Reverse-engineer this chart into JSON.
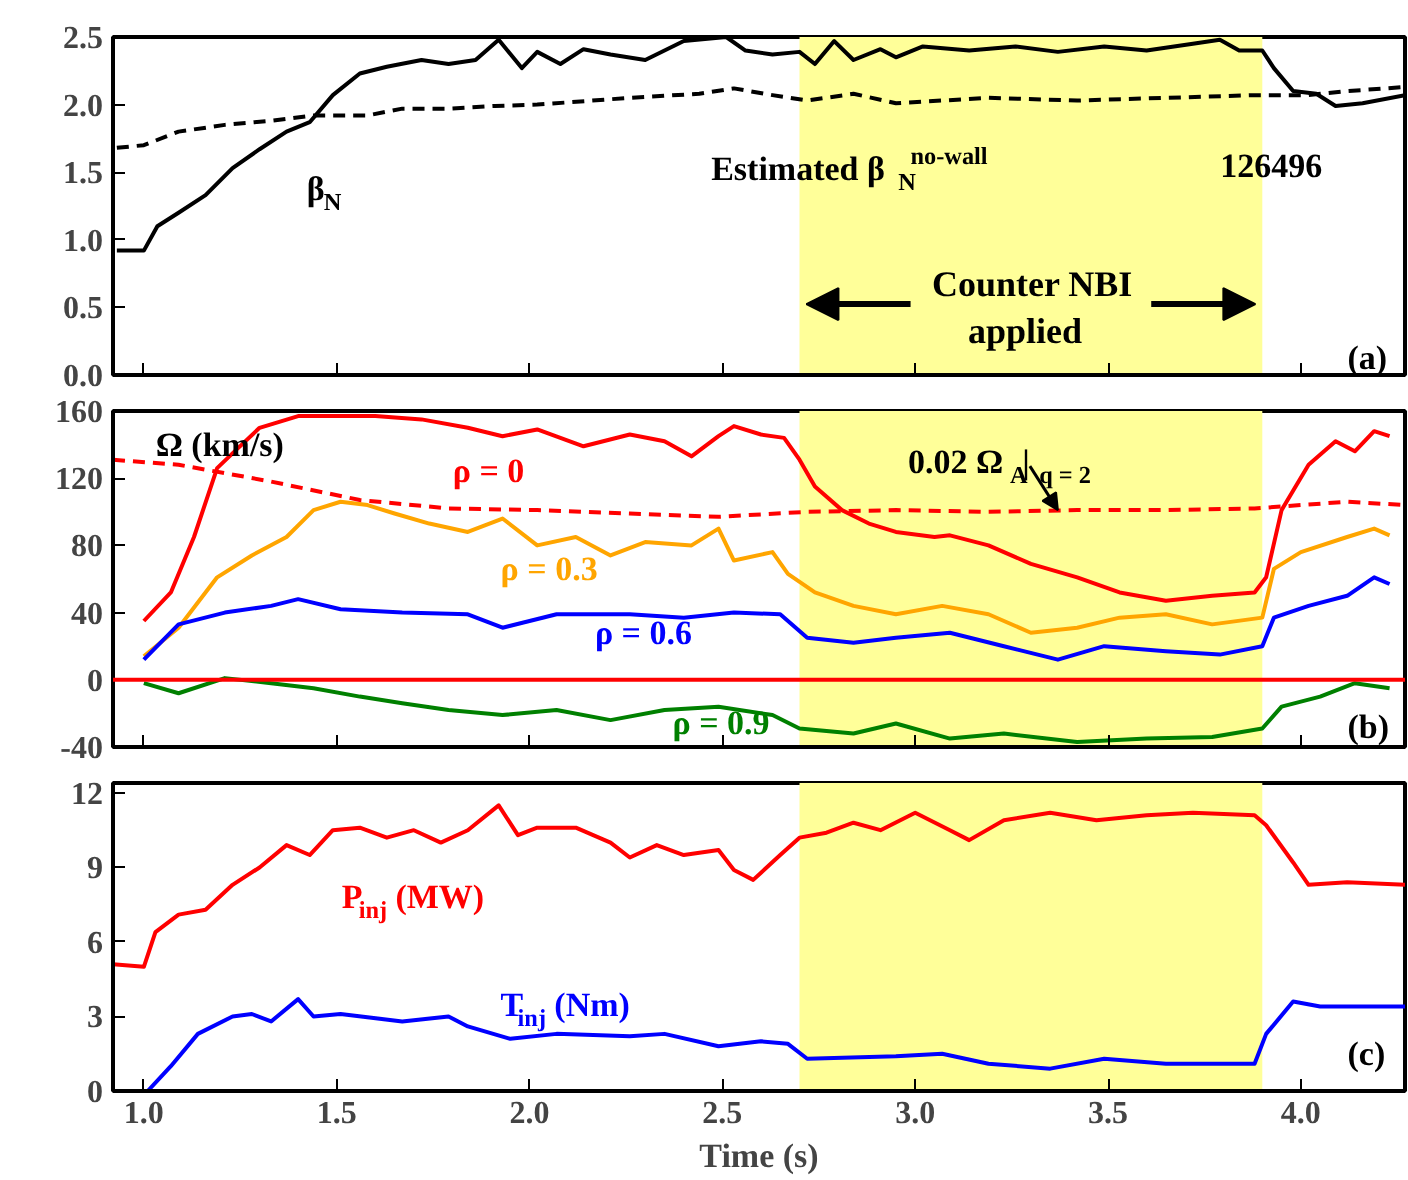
{
  "chart_data": [
    {
      "type": "line",
      "xlim": [
        0.92,
        4.27
      ],
      "ylim": [
        0,
        2.5
      ],
      "xticks": [
        {
          "value": 1,
          "label": null
        },
        {
          "value": 1.5,
          "label": null
        },
        {
          "value": 2,
          "label": null
        },
        {
          "value": 2.5,
          "label": null
        },
        {
          "value": 3,
          "label": null
        },
        {
          "value": 3.5,
          "label": null
        },
        {
          "value": 4,
          "label": null
        }
      ],
      "yticks": [
        {
          "value": 0,
          "label": "0.0"
        },
        {
          "value": 0.5,
          "label": "0.5"
        },
        {
          "value": 1,
          "label": "1.0"
        },
        {
          "value": 1.5,
          "label": "1.5"
        },
        {
          "value": 2,
          "label": "2.0"
        },
        {
          "value": 2.5,
          "label": "2.5"
        }
      ],
      "tick_labels": "y",
      "bands": [
        {
          "axis": "x",
          "from": 2.7,
          "to": 3.9,
          "label": "Counter NBI applied",
          "color": "#ffff99"
        }
      ],
      "annotations": [
        "126496",
        "(a)"
      ],
      "series": [
        {
          "name": "β$_{N}$",
          "color": "#000000",
          "line_style": "solid",
          "x": [
            0.93,
            1.0,
            1.035,
            1.09,
            1.16,
            1.23,
            1.3,
            1.37,
            1.43,
            1.49,
            1.56,
            1.63,
            1.72,
            1.79,
            1.86,
            1.92,
            1.98,
            2.02,
            2.08,
            2.14,
            2.21,
            2.3,
            2.4,
            2.51,
            2.56,
            2.63,
            2.7,
            2.74,
            2.79,
            2.84,
            2.91,
            2.95,
            3.02,
            3.14,
            3.26,
            3.37,
            3.49,
            3.6,
            3.72,
            3.79,
            3.84,
            3.9,
            3.93,
            3.98,
            4.04,
            4.09,
            4.16,
            4.27
          ],
          "values": [
            0.92,
            0.92,
            1.1,
            1.2,
            1.33,
            1.53,
            1.67,
            1.8,
            1.87,
            2.07,
            2.23,
            2.28,
            2.33,
            2.3,
            2.33,
            2.48,
            2.27,
            2.39,
            2.3,
            2.41,
            2.37,
            2.33,
            2.47,
            2.5,
            2.4,
            2.37,
            2.39,
            2.3,
            2.47,
            2.33,
            2.41,
            2.35,
            2.43,
            2.4,
            2.43,
            2.39,
            2.43,
            2.4,
            2.45,
            2.48,
            2.4,
            2.4,
            2.27,
            2.1,
            2.08,
            1.99,
            2.01,
            2.07
          ]
        },
        {
          "name": "Estimated β$_{N}$$^{no-wall}$",
          "color": "#000000",
          "line_style": "dashed",
          "x": [
            0.93,
            1.0,
            1.09,
            1.21,
            1.33,
            1.44,
            1.58,
            1.67,
            1.79,
            1.91,
            2.02,
            2.26,
            2.44,
            2.53,
            2.63,
            2.72,
            2.84,
            2.95,
            3.19,
            3.42,
            3.65,
            3.88,
            4.02,
            4.12,
            4.27
          ],
          "values": [
            1.68,
            1.7,
            1.8,
            1.85,
            1.88,
            1.92,
            1.92,
            1.97,
            1.97,
            1.99,
            2.0,
            2.05,
            2.08,
            2.12,
            2.07,
            2.03,
            2.08,
            2.01,
            2.05,
            2.03,
            2.05,
            2.07,
            2.07,
            2.1,
            2.13
          ]
        }
      ]
    },
    {
      "type": "line",
      "xlim": [
        0.92,
        4.27
      ],
      "ylim": [
        -40,
        160
      ],
      "xticks": [
        {
          "value": 1,
          "label": null
        },
        {
          "value": 1.5,
          "label": null
        },
        {
          "value": 2,
          "label": null
        },
        {
          "value": 2.5,
          "label": null
        },
        {
          "value": 3,
          "label": null
        },
        {
          "value": 3.5,
          "label": null
        },
        {
          "value": 4,
          "label": null
        }
      ],
      "yticks": [
        -40,
        0,
        40,
        80,
        120,
        160
      ],
      "tick_labels": "y",
      "ylabel": "Ω (km/s)",
      "bands": [
        {
          "axis": "x",
          "from": 2.7,
          "to": 3.9,
          "color": "#ffff99"
        }
      ],
      "ref_lines": [
        {
          "axis": "y",
          "value": 0,
          "color": "#ff0000"
        }
      ],
      "annotations": [
        {
          "text": "0.02 Ω$_{A}$|$_{q = 2}$",
          "x": 3.37,
          "y": 101
        },
        "(b)"
      ],
      "series": [
        {
          "name": "ρ = 0",
          "color": "#ff0000",
          "line_style": "solid",
          "x": [
            1.0,
            1.07,
            1.13,
            1.19,
            1.24,
            1.3,
            1.4,
            1.49,
            1.6,
            1.72,
            1.84,
            1.93,
            2.02,
            2.14,
            2.26,
            2.35,
            2.42,
            2.49,
            2.53,
            2.6,
            2.66,
            2.7,
            2.74,
            2.81,
            2.88,
            2.95,
            3.05,
            3.09,
            3.19,
            3.3,
            3.42,
            3.53,
            3.65,
            3.77,
            3.88,
            3.91,
            3.95,
            4.02,
            4.09,
            4.14,
            4.19,
            4.23
          ],
          "values": [
            35,
            52,
            85,
            126,
            137,
            150,
            157,
            157,
            157,
            155,
            150,
            145,
            149,
            139,
            146,
            142,
            133,
            145,
            151,
            146,
            144,
            131,
            115,
            101,
            93,
            88,
            85,
            86,
            80,
            69,
            61,
            52,
            47,
            50,
            52,
            61,
            101,
            128,
            142,
            136,
            148,
            145
          ]
        },
        {
          "name": "ρ = 0.3",
          "color": "#ffa500",
          "line_style": "solid",
          "x": [
            1.0,
            1.09,
            1.19,
            1.28,
            1.37,
            1.44,
            1.51,
            1.58,
            1.65,
            1.74,
            1.84,
            1.93,
            2.02,
            2.12,
            2.21,
            2.3,
            2.42,
            2.49,
            2.53,
            2.63,
            2.67,
            2.74,
            2.84,
            2.95,
            3.07,
            3.19,
            3.3,
            3.42,
            3.53,
            3.65,
            3.77,
            3.9,
            3.93,
            4.0,
            4.12,
            4.19,
            4.23
          ],
          "values": [
            14,
            31,
            61,
            74,
            85,
            101,
            106,
            104,
            99,
            93,
            88,
            96,
            80,
            85,
            74,
            82,
            80,
            90,
            71,
            76,
            63,
            52,
            44,
            39,
            44,
            39,
            28,
            31,
            37,
            39,
            33,
            37,
            66,
            76,
            85,
            90,
            86
          ]
        },
        {
          "name": "ρ = 0.6",
          "color": "#0000ff",
          "line_style": "solid",
          "x": [
            1.0,
            1.09,
            1.21,
            1.33,
            1.4,
            1.51,
            1.67,
            1.84,
            1.93,
            2.07,
            2.26,
            2.4,
            2.53,
            2.65,
            2.72,
            2.84,
            2.95,
            3.09,
            3.23,
            3.37,
            3.49,
            3.65,
            3.79,
            3.9,
            3.93,
            4.02,
            4.12,
            4.19,
            4.23
          ],
          "values": [
            12,
            33,
            40,
            44,
            48,
            42,
            40,
            39,
            31,
            39,
            39,
            37,
            40,
            39,
            25,
            22,
            25,
            28,
            20,
            12,
            20,
            17,
            15,
            20,
            37,
            44,
            50,
            61,
            57
          ]
        },
        {
          "name": "ρ = 0.9",
          "color": "#008000",
          "line_style": "solid",
          "x": [
            1.0,
            1.09,
            1.21,
            1.33,
            1.44,
            1.56,
            1.67,
            1.79,
            1.93,
            2.07,
            2.21,
            2.35,
            2.49,
            2.63,
            2.7,
            2.84,
            2.95,
            3.09,
            3.23,
            3.42,
            3.6,
            3.77,
            3.9,
            3.95,
            4.05,
            4.14,
            4.23
          ],
          "values": [
            -2,
            -8,
            1,
            -2,
            -5,
            -10,
            -14,
            -18,
            -21,
            -18,
            -24,
            -18,
            -16,
            -21,
            -29,
            -32,
            -26,
            -35,
            -32,
            -37,
            -35,
            -34,
            -29,
            -16,
            -10,
            -2,
            -5
          ]
        },
        {
          "color": "#ff0000",
          "line_style": "dashed",
          "x": [
            0.92,
            1.09,
            1.33,
            1.56,
            1.79,
            2.02,
            2.26,
            2.49,
            2.72,
            2.95,
            3.19,
            3.42,
            3.65,
            3.88,
            4.12,
            4.27
          ],
          "values": [
            131,
            128,
            118,
            107,
            102,
            101,
            99,
            97,
            100,
            101,
            100,
            101,
            101,
            102,
            106,
            104
          ]
        }
      ]
    },
    {
      "type": "line",
      "xlim": [
        0.92,
        4.27
      ],
      "ylim": [
        0,
        12.4
      ],
      "xticks": [
        {
          "value": 1,
          "label": "1.0"
        },
        {
          "value": 1.5,
          "label": "1.5"
        },
        {
          "value": 2,
          "label": "2.0"
        },
        {
          "value": 2.5,
          "label": "2.5"
        },
        {
          "value": 3,
          "label": "3.0"
        },
        {
          "value": 3.5,
          "label": "3.5"
        },
        {
          "value": 4,
          "label": "4.0"
        }
      ],
      "yticks": [
        0,
        3,
        6,
        9,
        12
      ],
      "xlabel": "Time (s)",
      "bands": [
        {
          "axis": "x",
          "from": 2.7,
          "to": 3.9,
          "color": "#ffff99"
        }
      ],
      "annotations": [
        "(c)"
      ],
      "series": [
        {
          "name": "P$_{inj}$ (MW)",
          "color": "#ff0000",
          "line_style": "solid",
          "x": [
            0.92,
            1.0,
            1.03,
            1.09,
            1.16,
            1.23,
            1.3,
            1.37,
            1.43,
            1.49,
            1.56,
            1.63,
            1.7,
            1.77,
            1.84,
            1.92,
            1.97,
            2.02,
            2.12,
            2.21,
            2.26,
            2.33,
            2.4,
            2.49,
            2.53,
            2.58,
            2.65,
            2.7,
            2.77,
            2.84,
            2.91,
            3.0,
            3.09,
            3.14,
            3.23,
            3.35,
            3.47,
            3.6,
            3.72,
            3.88,
            3.91,
            3.98,
            4.02,
            4.12,
            4.27
          ],
          "values": [
            5.1,
            5.0,
            6.4,
            7.1,
            7.3,
            8.3,
            9.0,
            9.9,
            9.5,
            10.5,
            10.6,
            10.2,
            10.5,
            10.0,
            10.5,
            11.5,
            10.3,
            10.6,
            10.6,
            10.0,
            9.4,
            9.9,
            9.5,
            9.7,
            8.9,
            8.5,
            9.5,
            10.2,
            10.4,
            10.8,
            10.5,
            11.2,
            10.5,
            10.1,
            10.9,
            11.2,
            10.9,
            11.1,
            11.2,
            11.1,
            10.7,
            9.2,
            8.3,
            8.4,
            8.3
          ]
        },
        {
          "name": "T$_{inj}$ (Nm)",
          "color": "#0000ff",
          "line_style": "solid",
          "x": [
            1.01,
            1.07,
            1.14,
            1.23,
            1.28,
            1.33,
            1.4,
            1.44,
            1.51,
            1.67,
            1.79,
            1.84,
            1.95,
            2.07,
            2.26,
            2.35,
            2.49,
            2.6,
            2.67,
            2.72,
            2.95,
            3.07,
            3.19,
            3.35,
            3.49,
            3.65,
            3.88,
            3.91,
            3.98,
            4.05,
            4.27
          ],
          "values": [
            0,
            1.0,
            2.3,
            3.0,
            3.1,
            2.8,
            3.7,
            3.0,
            3.1,
            2.8,
            3.0,
            2.6,
            2.1,
            2.3,
            2.2,
            2.3,
            1.8,
            2.0,
            1.9,
            1.3,
            1.4,
            1.5,
            1.1,
            0.9,
            1.3,
            1.1,
            1.1,
            2.3,
            3.6,
            3.4,
            3.4
          ]
        }
      ]
    }
  ]
}
